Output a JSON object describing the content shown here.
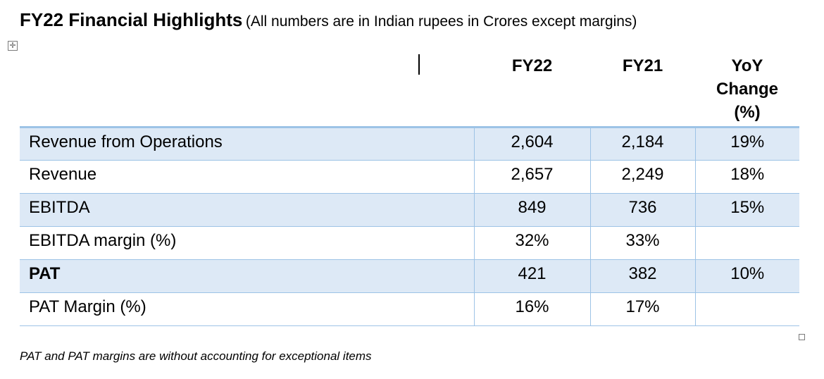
{
  "title": {
    "main": "FY22 Financial Highlights",
    "subtitle": "(All numbers are in Indian rupees in Crores except margins)"
  },
  "table": {
    "headers": [
      "",
      "FY22",
      "FY21",
      "YoY\nChange\n(%)"
    ],
    "rows": [
      {
        "label": "Revenue from Operations",
        "fy22": "2,604",
        "fy21": "2,184",
        "yoy": "19%"
      },
      {
        "label": "Revenue",
        "fy22": "2,657",
        "fy21": "2,249",
        "yoy": "18%"
      },
      {
        "label": "EBITDA",
        "fy22": "849",
        "fy21": "736",
        "yoy": "15%"
      },
      {
        "label": "EBITDA margin (%)",
        "fy22": "32%",
        "fy21": "33%",
        "yoy": ""
      },
      {
        "label": "PAT",
        "fy22": "421",
        "fy21": "382",
        "yoy": "10%"
      },
      {
        "label": "PAT Margin (%)",
        "fy22": "16%",
        "fy21": "17%",
        "yoy": ""
      }
    ]
  },
  "footnote": "PAT and PAT margins are without accounting for exceptional items",
  "colors": {
    "row_shade": "#dde9f6",
    "border": "#9dc3e6"
  },
  "icons": {
    "table_move": "move-cross-icon",
    "table_resize": "resize-square-icon"
  }
}
